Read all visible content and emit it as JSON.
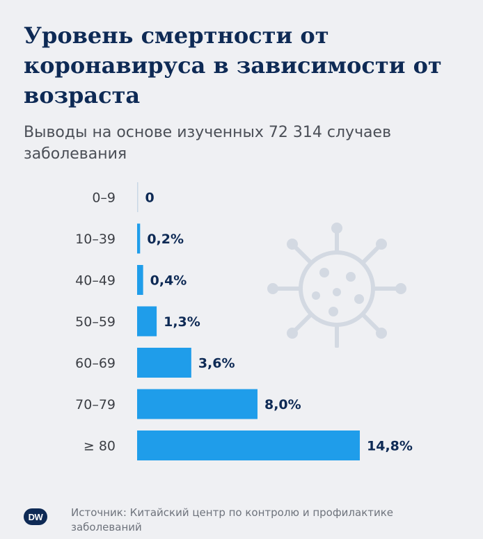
{
  "title": "Уровень смертности от коронавируса в зависимости от возраста",
  "subtitle": "Выводы на основе изученных 72 314 случаев заболевания",
  "source": "Источник: Китайский центр по контролю и профилактике заболеваний",
  "logo_text": "DW",
  "decoration_icon": "virus-icon",
  "colors": {
    "bar": "#1f9dea",
    "title": "#0e2a55",
    "background": "#eff0f3"
  },
  "chart_data": {
    "type": "bar",
    "orientation": "horizontal",
    "categories": [
      "0–9",
      "10–39",
      "40–49",
      "50–59",
      "60–69",
      "70–79",
      "≥ 80"
    ],
    "values": [
      0,
      0.2,
      0.4,
      1.3,
      3.6,
      8.0,
      14.8
    ],
    "value_labels": [
      "0",
      "0,2%",
      "0,4%",
      "1,3%",
      "3,6%",
      "8,0%",
      "14,8%"
    ],
    "unit": "%",
    "title": "Уровень смертности от коронавируса в зависимости от возраста",
    "xlabel": "",
    "ylabel": "",
    "grid": false,
    "legend": "none"
  }
}
